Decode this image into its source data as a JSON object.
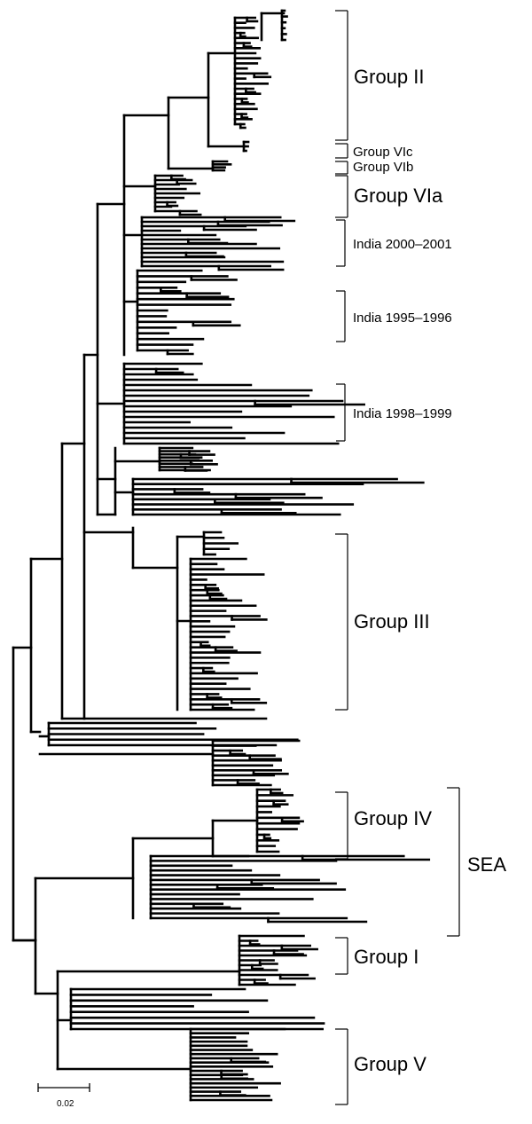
{
  "clade_labels": {
    "group_ii": "Group II",
    "group_vic": "Group VIc",
    "group_vib": "Group VIb",
    "group_via": "Group VIa",
    "india_2000_2001": "India 2000–2001",
    "india_1995_1996": "India 1995–1996",
    "india_1998_1999": "India 1998–1999",
    "group_iii": "Group III",
    "group_iv": "Group IV",
    "sea": "SEA",
    "group_i": "Group I",
    "group_v": "Group V"
  },
  "scale_bar": {
    "label": "0.02"
  }
}
